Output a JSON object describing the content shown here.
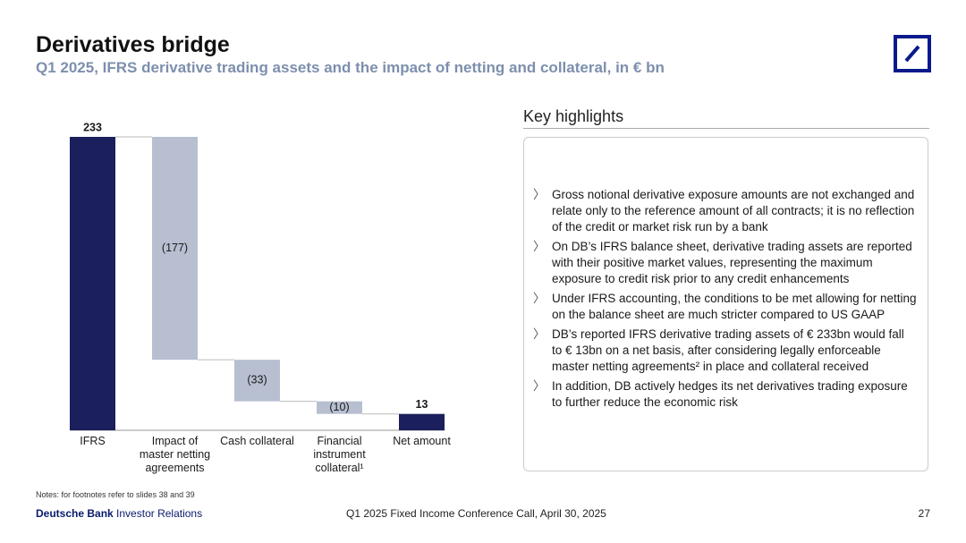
{
  "header": {
    "title": "Derivatives bridge",
    "subtitle": "Q1 2025, IFRS derivative trading assets and the impact of netting and collateral, in € bn"
  },
  "chart_data": {
    "type": "waterfall",
    "categories": [
      "IFRS",
      "Impact of master netting agreements",
      "Cash collateral",
      "Financial instrument collateral¹",
      "Net amount"
    ],
    "values": [
      233,
      -177,
      -33,
      -10,
      13
    ],
    "value_labels": [
      "233",
      "(177)",
      "(33)",
      "(10)",
      "13"
    ],
    "colors": [
      "#1b1f5c",
      "#b7bfd1",
      "#b7bfd1",
      "#b7bfd1",
      "#1b1f5c"
    ]
  },
  "highlights": {
    "title": "Key highlights",
    "items": [
      "Gross notional derivative exposure amounts are not exchanged and relate only to the reference amount of all contracts; it is no reflection of the credit or market risk run by a bank",
      "On DB’s IFRS balance sheet, derivative trading assets are reported with their positive market values, representing the maximum exposure to credit risk prior to any credit enhancements",
      "Under IFRS accounting, the conditions to be met allowing for netting on the balance sheet are much stricter compared to US GAAP",
      "DB’s reported IFRS derivative trading assets of € 233bn would fall to € 13bn on a net basis, after considering legally enforceable master netting agreements² in place and collateral received",
      "In addition, DB actively hedges its net derivatives trading exposure to further reduce the economic risk"
    ]
  },
  "notes": "Notes: for footnotes refer to slides 38 and 39",
  "footer": {
    "brand": "Deutsche Bank",
    "unit": "Investor Relations",
    "event": "Q1 2025 Fixed Income Conference Call, April 30, 2025",
    "page": "27"
  }
}
